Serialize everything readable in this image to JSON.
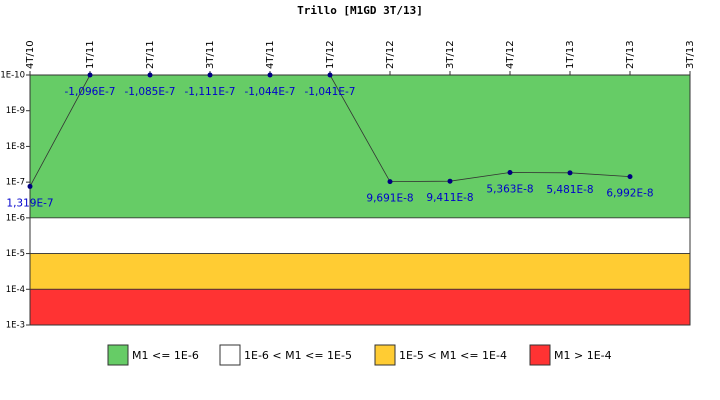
{
  "chart_data": {
    "type": "line",
    "title": "Trillo [M1GD 3T/13]",
    "categories": [
      "4T/10",
      "1T/11",
      "2T/11",
      "3T/11",
      "4T/11",
      "1T/12",
      "2T/12",
      "3T/12",
      "4T/12",
      "1T/13",
      "2T/13",
      "3T/13"
    ],
    "series": [
      {
        "name": "M1GD",
        "color": "#000080",
        "values": [
          1.319e-07,
          -1.096e-07,
          -1.085e-07,
          -1.111e-07,
          -1.044e-07,
          -1.041e-07,
          9.691e-08,
          9.411e-08,
          5.363e-08,
          5.481e-08,
          6.992e-08,
          null
        ],
        "value_labels": [
          "1,319E-7",
          "-1,096E-7",
          "-1,085E-7",
          "-1,111E-7",
          "-1,044E-7",
          "-1,041E-7",
          "9,691E-8",
          "9,411E-8",
          "5,363E-8",
          "5,481E-8",
          "6,992E-8",
          null
        ]
      }
    ],
    "log_scale": true,
    "y_inverted": true,
    "ylim": [
      1e-10,
      0.001
    ],
    "yticks": [
      {
        "value": 1e-10,
        "label": "1E-10"
      },
      {
        "value": 1e-09,
        "label": "1E-9"
      },
      {
        "value": 1e-08,
        "label": "1E-8"
      },
      {
        "value": 1e-07,
        "label": "1E-7"
      },
      {
        "value": 1e-06,
        "label": "1E-6"
      },
      {
        "value": 1e-05,
        "label": "1E-5"
      },
      {
        "value": 0.0001,
        "label": "1E-4"
      },
      {
        "value": 0.001,
        "label": "1E-3"
      }
    ],
    "bands": [
      {
        "name": "M1 <= 1E-6",
        "color": "#66cc66",
        "from": 1e-10,
        "to": 1e-06
      },
      {
        "name": "1E-6 < M1 <= 1E-5",
        "color": "#ffffff",
        "from": 1e-06,
        "to": 1e-05
      },
      {
        "name": "1E-5 < M1 <= 1E-4",
        "color": "#ffcc33",
        "from": 1e-05,
        "to": 0.0001
      },
      {
        "name": "M1 > 1E-4",
        "color": "#ff3333",
        "from": 0.0001,
        "to": 0.001
      }
    ]
  }
}
